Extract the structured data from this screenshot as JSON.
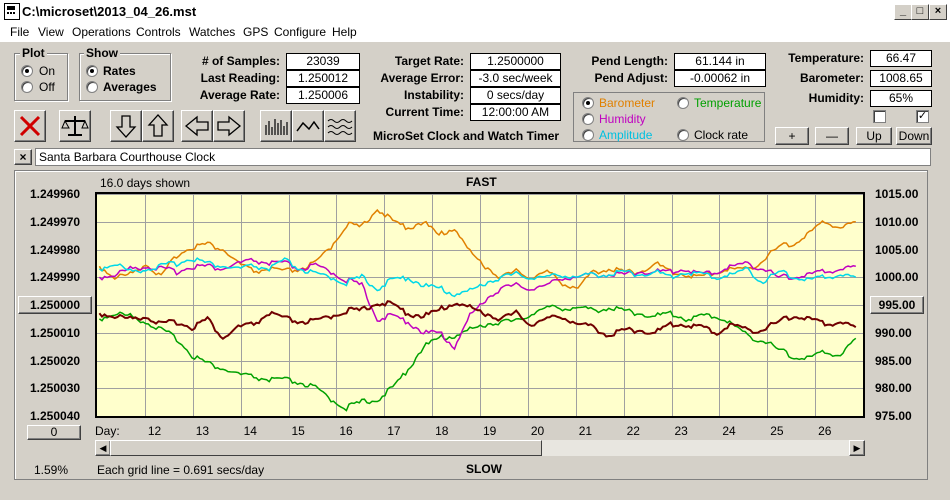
{
  "window": {
    "title": "C:\\microset\\2013_04_26.mst"
  },
  "menu": [
    "File",
    "View",
    "Operations",
    "Controls",
    "Watches",
    "GPS",
    "Configure",
    "Help"
  ],
  "plot_group": {
    "title": "Plot",
    "on": "On",
    "off": "Off",
    "selected": "On"
  },
  "show_group": {
    "title": "Show",
    "rates": "Rates",
    "averages": "Averages",
    "selected": "Rates"
  },
  "stats": {
    "samples_label": "# of Samples:",
    "samples": "23039",
    "last_label": "Last Reading:",
    "last": "1.250012",
    "avg_label": "Average Rate:",
    "avg": "1.250006"
  },
  "rates": {
    "target_label": "Target Rate:",
    "target": "1.2500000",
    "error_label": "Average Error:",
    "error": "-3.0 sec/week",
    "instab_label": "Instability:",
    "instab": "0 secs/day",
    "time_label": "Current Time:",
    "time": "12:00:00 AM"
  },
  "app_name": "MicroSet Clock and Watch Timer",
  "pend": {
    "length_label": "Pend Length:",
    "length": "61.144 in",
    "adjust_label": "Pend Adjust:",
    "adjust": "-0.00062 in"
  },
  "sensor_select": {
    "barometer": "Barometer",
    "temperature": "Temperature",
    "humidity": "Humidity",
    "amplitude": "Amplitude",
    "clock_rate": "Clock rate",
    "selected": "Barometer",
    "colors": {
      "barometer": "#e08000",
      "temperature": "#00a000",
      "humidity": "#c000c0",
      "amplitude": "#00c0e0",
      "clock_rate": "#000000"
    }
  },
  "env": {
    "temp_label": "Temperature:",
    "temp": "66.47",
    "baro_label": "Barometer:",
    "baro": "1008.65",
    "hum_label": "Humidity:",
    "hum": "65%",
    "check1": false,
    "check2": true,
    "plus": "+",
    "minus": "—",
    "up": "Up",
    "down": "Down"
  },
  "clock_name": "Santa Barbara Courthouse Clock",
  "graph": {
    "days_shown": "16.0 days shown",
    "top_label": "FAST",
    "bottom_label": "SLOW",
    "grid_note": "Each grid line = 0.691 secs/day",
    "percent": "1.59%",
    "left_button": "1.250000",
    "right_button": "995.00",
    "zero_button": "0",
    "day_label": "Day:"
  },
  "chart_data": {
    "type": "line",
    "y_left_ticks": [
      "1.249960",
      "1.249970",
      "1.249980",
      "1.249990",
      "1.250000",
      "1.250010",
      "1.250020",
      "1.250030",
      "1.250040"
    ],
    "y_right_ticks": [
      "1015.00",
      "1010.00",
      "1005.00",
      "1000.00",
      "995.00",
      "990.00",
      "985.00",
      "980.00",
      "975.00"
    ],
    "x_ticks": [
      "12",
      "13",
      "14",
      "15",
      "16",
      "17",
      "18",
      "19",
      "20",
      "21",
      "22",
      "23",
      "24",
      "25",
      "26"
    ],
    "xlim": [
      11,
      27
    ],
    "grid": true,
    "series": [
      {
        "color": "#e08000",
        "y": [
          1.249986,
          1.24999,
          1.249989,
          1.249985,
          1.24999,
          1.249982,
          1.249979,
          1.249978,
          1.24998,
          1.249985,
          1.249988,
          1.249987,
          1.249988,
          1.249987,
          1.249985,
          1.249979,
          1.249971,
          1.249972,
          1.249965,
          1.24997,
          1.249972,
          1.24997,
          1.249975,
          1.249972,
          1.249981,
          1.249986,
          1.24999,
          1.249988,
          1.24999,
          1.249988,
          1.249992,
          1.249994,
          1.249988,
          1.249987,
          1.249988,
          1.249988,
          1.249985,
          1.249988,
          1.249989,
          1.24999,
          1.249988,
          1.249987,
          1.249987,
          1.249984,
          1.249979,
          1.249978,
          1.249974,
          1.24997,
          1.249972,
          1.24997
        ]
      },
      {
        "color": "#00a000",
        "y": [
          1.250005,
          1.250003,
          1.250004,
          1.250006,
          1.250009,
          1.250012,
          1.250018,
          1.250021,
          1.250023,
          1.250025,
          1.250026,
          1.250027,
          1.250027,
          1.250028,
          1.25003,
          1.250034,
          1.250037,
          1.250035,
          1.250034,
          1.25003,
          1.250023,
          1.250015,
          1.250012,
          1.250011,
          1.250009,
          1.250007,
          1.250006,
          1.250006,
          1.250003,
          1.250001,
          1.250001,
          1.250001,
          1.250002,
          1.250001,
          1.250002,
          1.250003,
          1.250004,
          1.250003,
          1.250005,
          1.250004,
          1.250004,
          1.250007,
          1.250011,
          1.250013,
          1.250016,
          1.250019,
          1.250019,
          1.250017,
          1.250018,
          1.250012
        ]
      },
      {
        "color": "#c000c0",
        "y": [
          1.24999,
          1.249989,
          1.249987,
          1.249986,
          1.249987,
          1.249988,
          1.249986,
          1.249986,
          1.249987,
          1.249985,
          1.249984,
          1.249985,
          1.249985,
          1.249987,
          1.249986,
          1.249988,
          1.249991,
          1.249993,
          1.250005,
          1.250004,
          1.250006,
          1.25001,
          1.25001,
          1.250015,
          1.250004,
          1.249998,
          1.249994,
          1.249993,
          1.249994,
          1.249993,
          1.24999,
          1.24999,
          1.249989,
          1.249989,
          1.249989,
          1.249988,
          1.249988,
          1.249988,
          1.249987,
          1.249989,
          1.249988,
          1.249986,
          1.249985,
          1.249987,
          1.24999,
          1.24999,
          1.249989,
          1.249988,
          1.249987,
          1.249986
        ]
      },
      {
        "color": "#00d8e8",
        "y": [
          1.249987,
          1.249985,
          1.249988,
          1.249987,
          1.249986,
          1.249985,
          1.249983,
          1.249985,
          1.249986,
          1.249987,
          1.249986,
          1.249987,
          1.249984,
          1.249987,
          1.249989,
          1.24999,
          1.249992,
          1.24999,
          1.249994,
          1.249991,
          1.24999,
          1.249993,
          1.249994,
          1.249996,
          1.249995,
          1.249992,
          1.24999,
          1.249989,
          1.24999,
          1.24999,
          1.249989,
          1.24999,
          1.249989,
          1.249989,
          1.249988,
          1.249989,
          1.249988,
          1.24999,
          1.249988,
          1.249989,
          1.24999,
          1.249989,
          1.249987,
          1.249992,
          1.249988,
          1.24999,
          1.249991,
          1.24999,
          1.249989,
          1.24999
        ]
      },
      {
        "color": "#700000",
        "y": [
          1.250003,
          1.250004,
          1.250005,
          1.250004,
          1.250007,
          1.250006,
          1.250008,
          1.250005,
          1.250012,
          1.250008,
          1.250007,
          1.250003,
          1.250005,
          1.250006,
          1.250006,
          1.250004,
          1.250002,
          1.250002,
          1.249999,
          1.25,
          1.250003,
          1.250004,
          1.250002,
          1.249999,
          1.250001,
          1.250003,
          1.250005,
          1.250003,
          1.250007,
          1.250005,
          1.250004,
          1.250007,
          1.250008,
          1.250011,
          1.250009,
          1.250009,
          1.25001,
          1.250007,
          1.250007,
          1.250008,
          1.25001,
          1.250007,
          1.250009,
          1.250009,
          1.250006,
          1.250004,
          1.250005,
          1.250007,
          1.250006,
          1.250008
        ]
      }
    ]
  }
}
